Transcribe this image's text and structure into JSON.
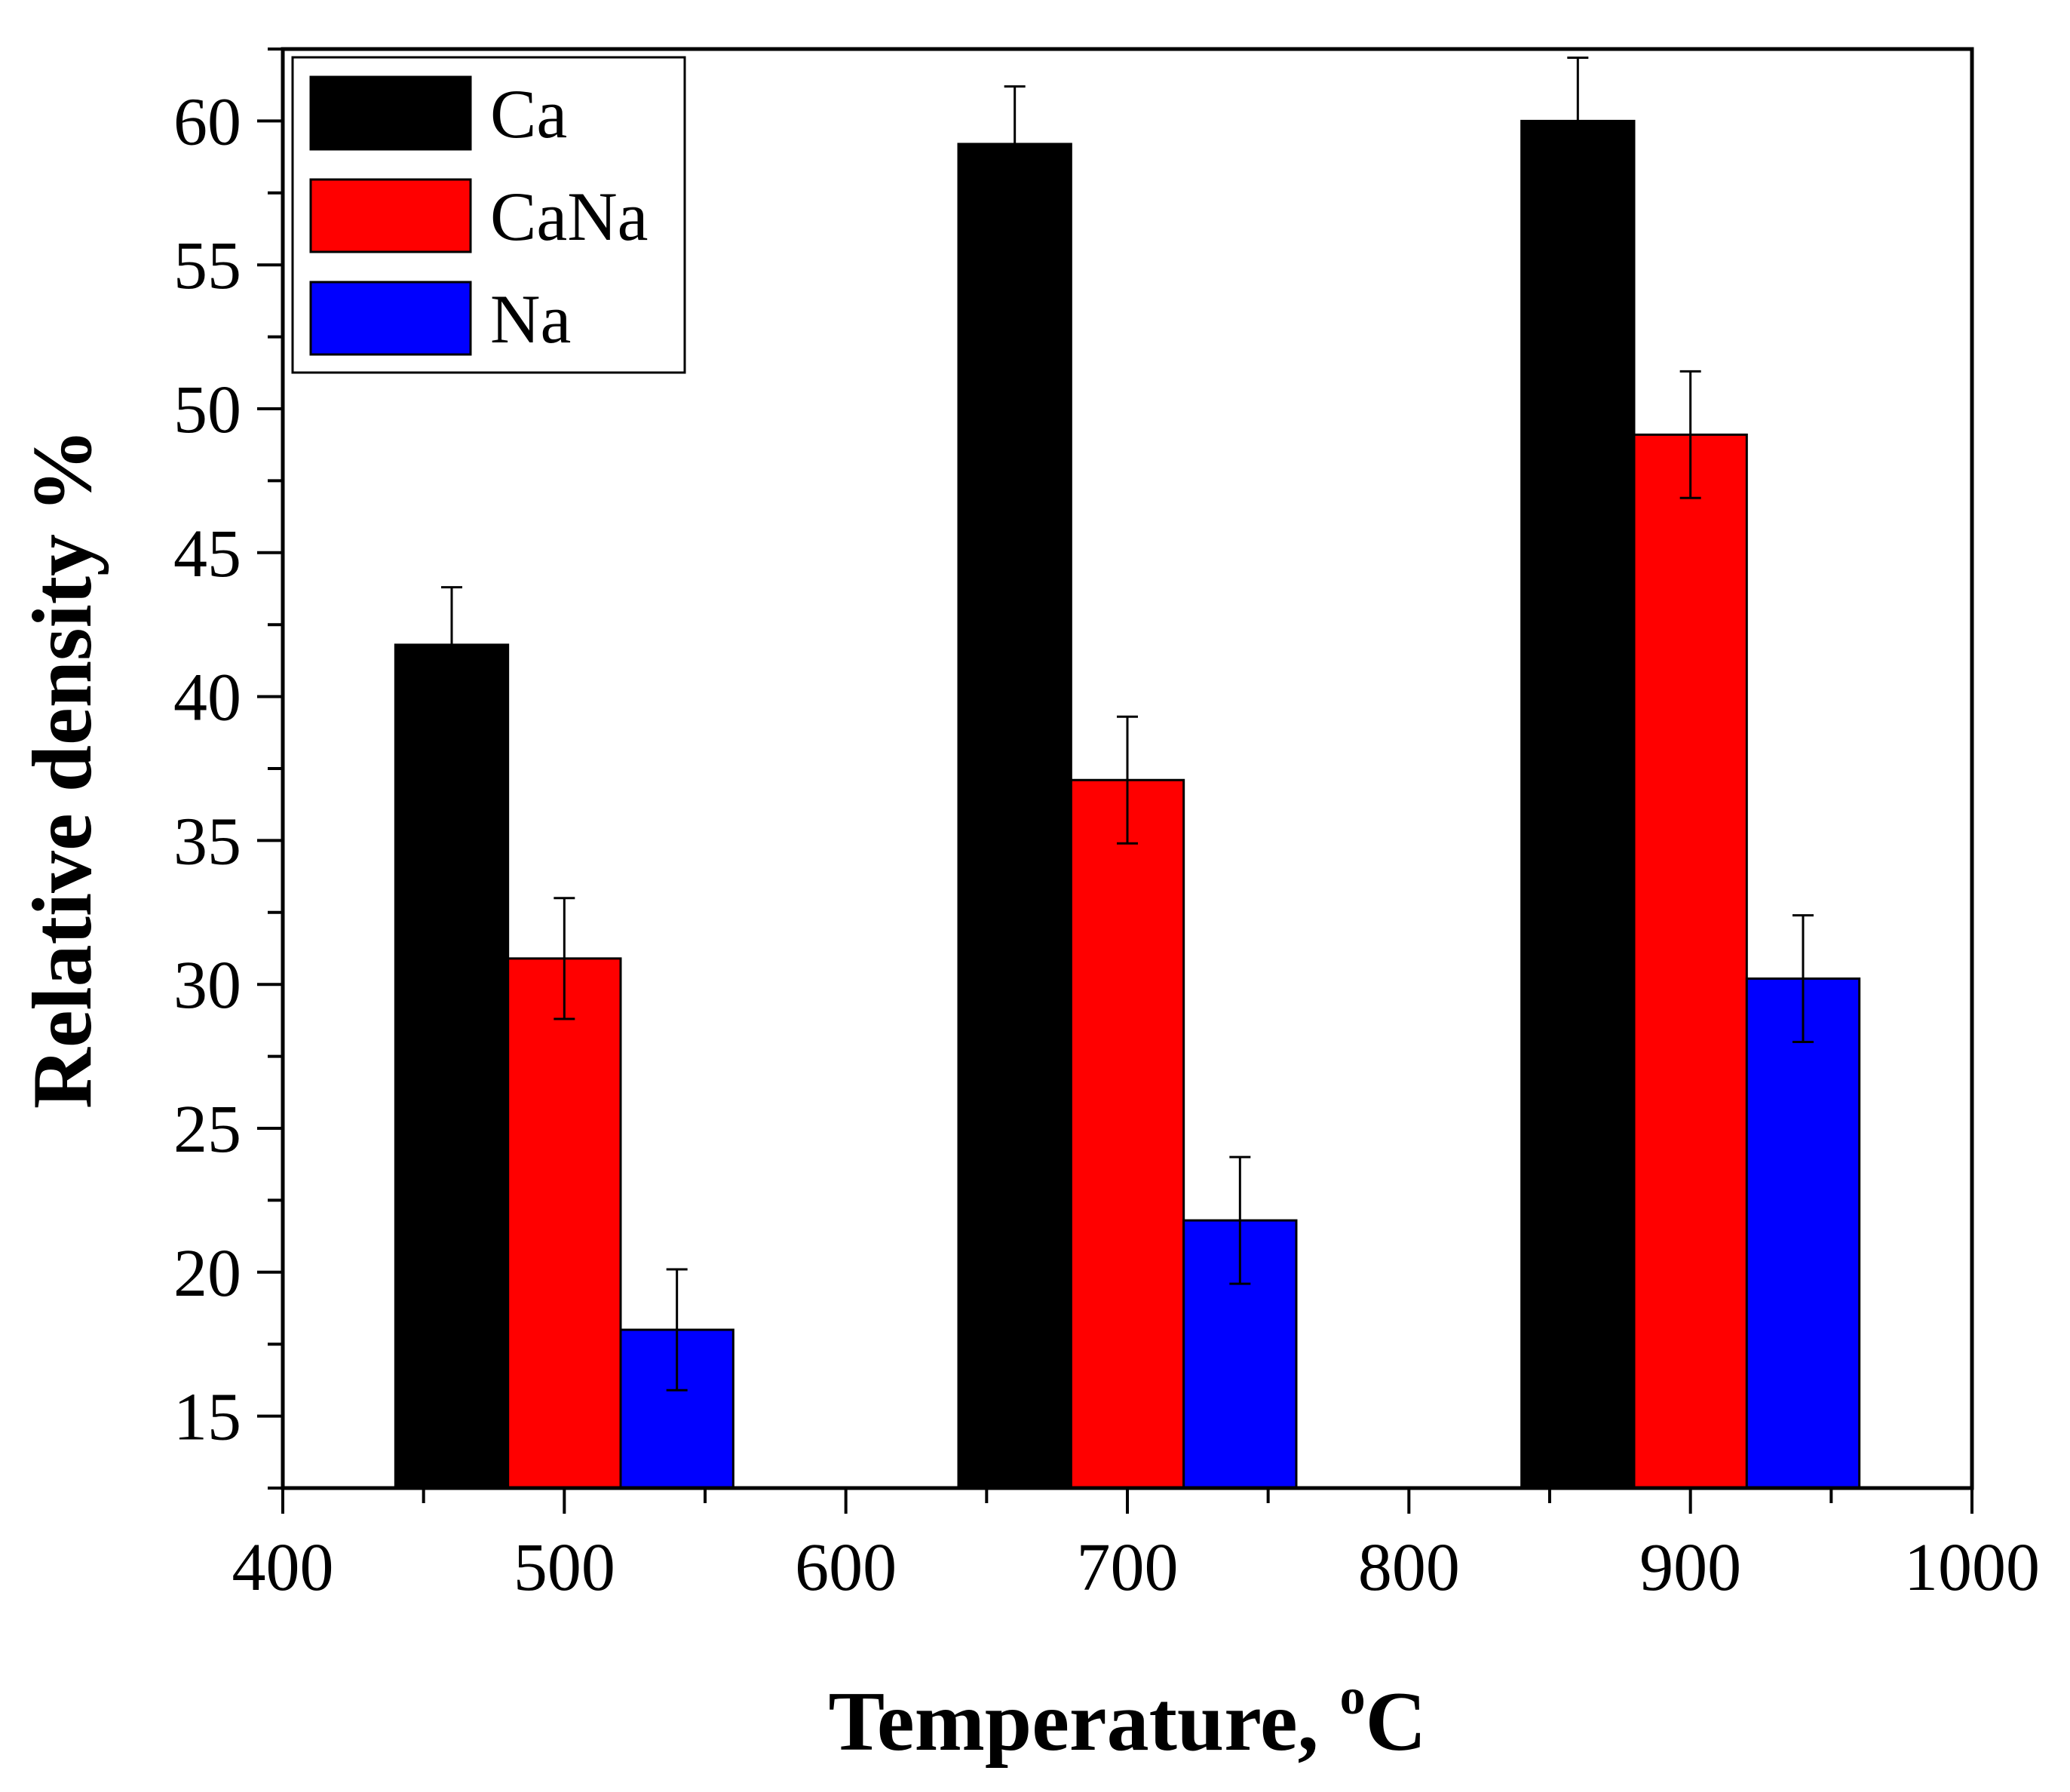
{
  "chart_data": {
    "type": "bar",
    "title": "",
    "xlabel": "Temperature, ",
    "xlabel_superscript": "o",
    "xlabel_unit": "C",
    "ylabel": "Relative density %",
    "x_groups": [
      500,
      700,
      900
    ],
    "xlim": [
      400,
      1000
    ],
    "ylim": [
      12.5,
      62.5
    ],
    "xticks": [
      "400",
      "500",
      "600",
      "700",
      "800",
      "900",
      "1000"
    ],
    "yticks": [
      "15",
      "20",
      "25",
      "30",
      "35",
      "40",
      "45",
      "50",
      "55",
      "60"
    ],
    "xtick_values": [
      400,
      500,
      600,
      700,
      800,
      900,
      1000
    ],
    "ytick_values": [
      15,
      20,
      25,
      30,
      35,
      40,
      45,
      50,
      55,
      60
    ],
    "x_minor_step": 50,
    "y_minor_step": 2.5,
    "bar_group_width": 120,
    "legend_position": "top-left",
    "series": [
      {
        "name": "Ca",
        "color": "#000000",
        "values": [
          41.8,
          59.2,
          60.0
        ],
        "errors": [
          2.0,
          2.0,
          2.2
        ]
      },
      {
        "name": "CaNa",
        "color": "#ff0000",
        "values": [
          30.9,
          37.1,
          49.1
        ],
        "errors": [
          2.1,
          2.2,
          2.2
        ]
      },
      {
        "name": "Na",
        "color": "#0000ff",
        "values": [
          18.0,
          21.8,
          30.2
        ],
        "errors": [
          2.1,
          2.2,
          2.2
        ]
      }
    ]
  }
}
